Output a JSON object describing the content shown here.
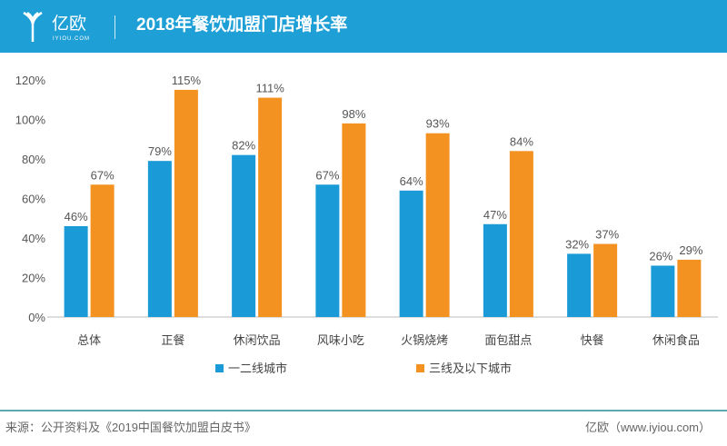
{
  "header": {
    "logo_text": "亿欧",
    "logo_sub": "IYIOU.COM",
    "title": "2018年餐饮加盟门店增长率"
  },
  "colors": {
    "header": "#1e9fd6",
    "series1": "#1a9ad6",
    "series2": "#f39220"
  },
  "chart_data": {
    "type": "bar",
    "title": "2018年餐饮加盟门店增长率",
    "categories": [
      "总体",
      "正餐",
      "休闲饮品",
      "风味小吃",
      "火锅烧烤",
      "面包甜点",
      "快餐",
      "休闲食品"
    ],
    "series": [
      {
        "name": "一二线城市",
        "values": [
          46,
          79,
          82,
          67,
          64,
          47,
          32,
          26
        ]
      },
      {
        "name": "三线及以下城市",
        "values": [
          67,
          115,
          111,
          98,
          93,
          84,
          37,
          29
        ]
      }
    ],
    "ylim": [
      0,
      120
    ],
    "yticks": [
      0,
      20,
      40,
      60,
      80,
      100,
      120
    ],
    "ytick_labels": [
      "0%",
      "20%",
      "40%",
      "60%",
      "80%",
      "100%",
      "120%"
    ],
    "legend": "bottom-center",
    "grid": false
  },
  "footer": {
    "source": "来源：公开资料及《2019中国餐饮加盟白皮书》",
    "credit": "亿欧（www.iyiou.com）"
  }
}
